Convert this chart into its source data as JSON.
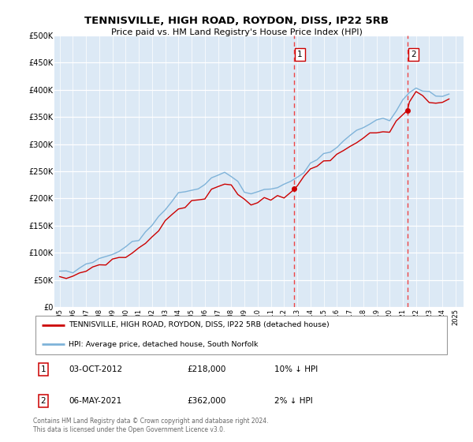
{
  "title": "TENNISVILLE, HIGH ROAD, ROYDON, DISS, IP22 5RB",
  "subtitle": "Price paid vs. HM Land Registry's House Price Index (HPI)",
  "legend_line1": "TENNISVILLE, HIGH ROAD, ROYDON, DISS, IP22 5RB (detached house)",
  "legend_line2": "HPI: Average price, detached house, South Norfolk",
  "annotation1_label": "1",
  "annotation1_date": "03-OCT-2012",
  "annotation1_price": "£218,000",
  "annotation1_hpi": "10% ↓ HPI",
  "annotation2_label": "2",
  "annotation2_date": "06-MAY-2021",
  "annotation2_price": "£362,000",
  "annotation2_hpi": "2% ↓ HPI",
  "footer": "Contains HM Land Registry data © Crown copyright and database right 2024.\nThis data is licensed under the Open Government Licence v3.0.",
  "property_color": "#cc0000",
  "hpi_color": "#7fb3d9",
  "vline_color": "#ee4444",
  "plot_bg_color": "#dce9f5",
  "ylim": [
    0,
    500000
  ],
  "yticks": [
    0,
    50000,
    100000,
    150000,
    200000,
    250000,
    300000,
    350000,
    400000,
    450000,
    500000
  ],
  "ytick_labels": [
    "£0",
    "£50K",
    "£100K",
    "£150K",
    "£200K",
    "£250K",
    "£300K",
    "£350K",
    "£400K",
    "£450K",
    "£500K"
  ],
  "marker1_year": 2012.75,
  "marker2_year": 2021.35,
  "xmin": 1994.6,
  "xmax": 2025.6,
  "hpi_years": [
    1995,
    1995.5,
    1996,
    1996.5,
    1997,
    1997.5,
    1998,
    1998.5,
    1999,
    1999.5,
    2000,
    2000.5,
    2001,
    2001.5,
    2002,
    2002.5,
    2003,
    2003.5,
    2004,
    2004.5,
    2005,
    2005.5,
    2006,
    2006.5,
    2007,
    2007.5,
    2008,
    2008.5,
    2009,
    2009.5,
    2010,
    2010.5,
    2011,
    2011.5,
    2012,
    2012.5,
    2013,
    2013.5,
    2014,
    2014.5,
    2015,
    2015.5,
    2016,
    2016.5,
    2017,
    2017.5,
    2018,
    2018.5,
    2019,
    2019.5,
    2020,
    2020.5,
    2021,
    2021.5,
    2022,
    2022.5,
    2023,
    2023.5,
    2024,
    2024.5
  ],
  "hpi_values": [
    63000,
    65000,
    67000,
    72000,
    78000,
    84000,
    89000,
    93000,
    97000,
    103000,
    110000,
    118000,
    125000,
    136000,
    150000,
    166000,
    182000,
    194000,
    207000,
    215000,
    220000,
    222000,
    225000,
    232000,
    240000,
    244000,
    240000,
    228000,
    212000,
    207000,
    213000,
    218000,
    217000,
    221000,
    223000,
    231000,
    238000,
    248000,
    262000,
    273000,
    281000,
    286000,
    296000,
    307000,
    318000,
    326000,
    331000,
    336000,
    343000,
    348000,
    343000,
    360000,
    383000,
    393000,
    401000,
    397000,
    391000,
    386000,
    388000,
    393000
  ],
  "prop_years": [
    1995.0,
    1995.5,
    1996.0,
    1996.5,
    1997.0,
    1997.5,
    1998.0,
    1998.5,
    1999.0,
    1999.5,
    2000.0,
    2000.5,
    2001.0,
    2001.5,
    2002.0,
    2002.5,
    2003.0,
    2003.5,
    2004.0,
    2004.5,
    2005.0,
    2005.5,
    2006.0,
    2006.5,
    2007.0,
    2007.5,
    2008.0,
    2008.5,
    2009.0,
    2009.5,
    2010.0,
    2010.5,
    2011.0,
    2011.5,
    2012.0,
    2012.75,
    2013.0,
    2013.5,
    2014.0,
    2014.5,
    2015.0,
    2015.5,
    2016.0,
    2016.5,
    2017.0,
    2017.5,
    2018.0,
    2018.5,
    2019.0,
    2019.5,
    2020.0,
    2020.5,
    2021.35,
    2021.5,
    2022.0,
    2022.5,
    2023.0,
    2023.5,
    2024.0,
    2024.5
  ],
  "prop_values": [
    52000,
    54000,
    57000,
    62000,
    68000,
    74000,
    78000,
    82000,
    86000,
    90000,
    93000,
    100000,
    108000,
    118000,
    130000,
    144000,
    158000,
    170000,
    180000,
    187000,
    192000,
    197000,
    200000,
    212000,
    222000,
    230000,
    226000,
    213000,
    196000,
    189000,
    194000,
    199000,
    201000,
    204000,
    206000,
    218000,
    226000,
    237000,
    250000,
    260000,
    267000,
    270000,
    280000,
    290000,
    300000,
    307000,
    310000,
    315000,
    320000,
    324000,
    317000,
    342000,
    362000,
    377000,
    397000,
    390000,
    380000,
    374000,
    377000,
    380000
  ],
  "prop_dot_year": 2012.75,
  "prop_dot_value": 218000,
  "prop_dot2_year": 2021.35,
  "prop_dot2_value": 362000,
  "noise_seed_hpi": 10,
  "noise_seed_prop": 7,
  "noise_std": 2500
}
